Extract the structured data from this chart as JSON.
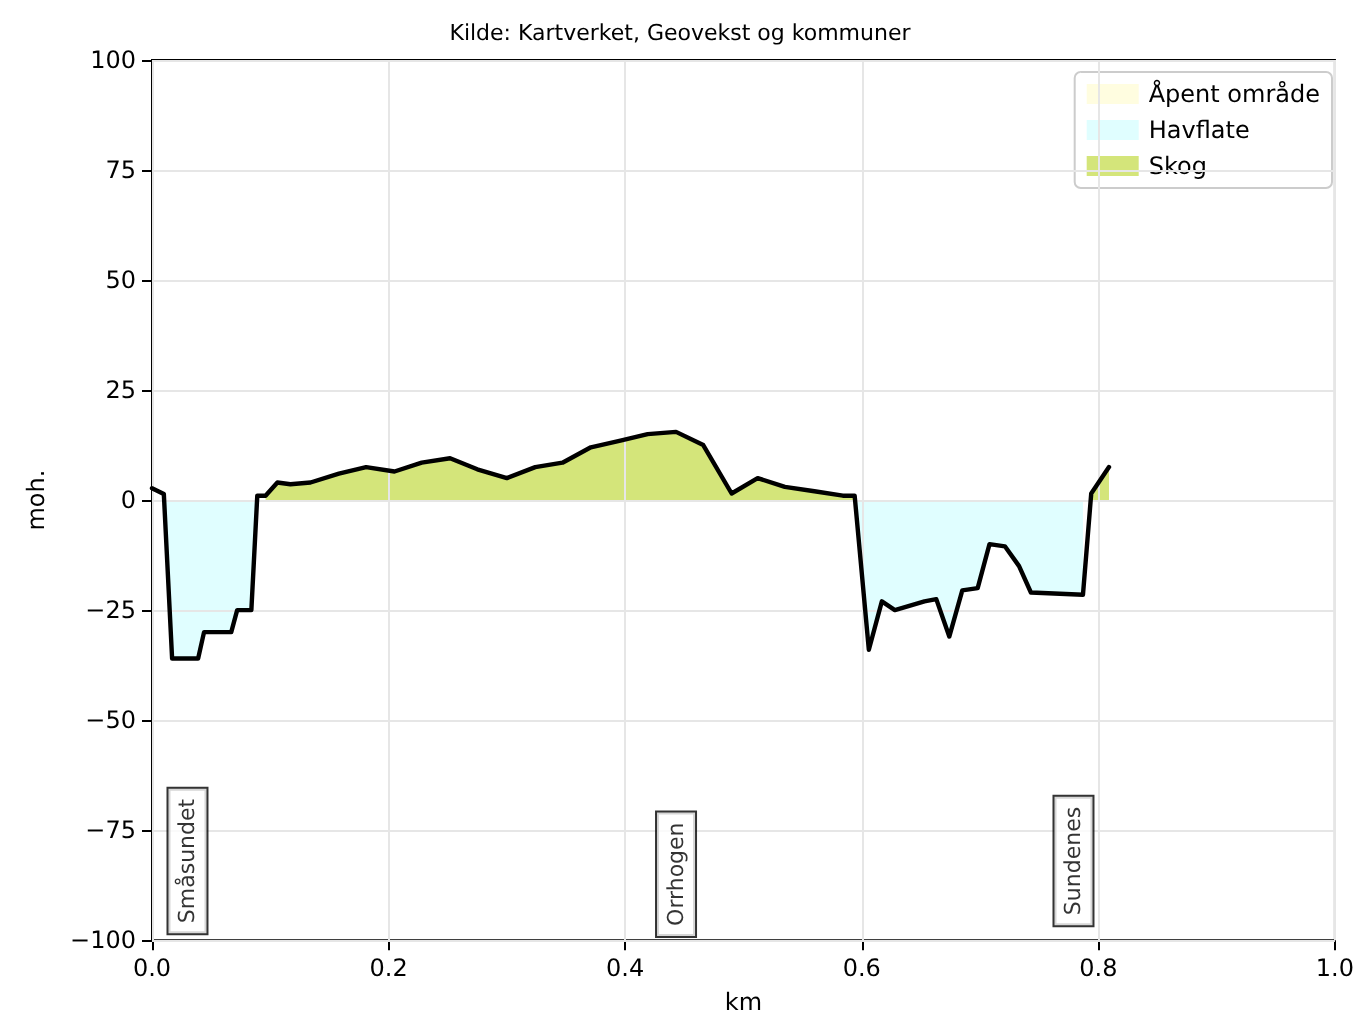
{
  "chart_data": {
    "type": "line",
    "title": "Kilde: Kartverket, Geovekst og kommuner",
    "xlabel": "km",
    "ylabel": "moh.",
    "x": [
      0,
      0.01,
      0.017,
      0.039,
      0.044,
      0.067,
      0.072,
      0.084,
      0.089,
      0.096,
      0.106,
      0.117,
      0.134,
      0.158,
      0.181,
      0.205,
      0.228,
      0.252,
      0.275,
      0.3,
      0.324,
      0.347,
      0.371,
      0.396,
      0.419,
      0.443,
      0.466,
      0.49,
      0.512,
      0.535,
      0.56,
      0.584,
      0.594,
      0.606,
      0.617,
      0.628,
      0.653,
      0.663,
      0.674,
      0.685,
      0.698,
      0.708,
      0.721,
      0.733,
      0.743,
      0.787,
      0.794,
      0.809
    ],
    "series": [
      {
        "type": "area",
        "name": "Åpent område",
        "color": "#fffde0",
        "values": [
          null,
          null,
          null,
          null,
          null,
          null,
          null,
          null,
          null,
          null,
          null,
          null,
          null,
          null,
          null,
          null,
          null,
          null,
          null,
          null,
          null,
          null,
          null,
          null,
          null,
          null,
          null,
          null,
          null,
          null,
          null,
          null,
          null,
          null,
          null,
          null,
          null,
          null,
          null,
          null,
          null,
          null,
          null,
          null,
          null,
          null,
          null,
          null
        ]
      },
      {
        "type": "area",
        "name": "Havflate",
        "color": "#e0feff",
        "values": [
          null,
          1.4,
          -36,
          -36,
          -30,
          -30,
          -25,
          -25,
          1,
          null,
          null,
          null,
          null,
          null,
          null,
          null,
          null,
          null,
          null,
          null,
          null,
          null,
          null,
          null,
          null,
          null,
          null,
          null,
          null,
          null,
          null,
          null,
          1,
          -34,
          -23,
          -25,
          -23,
          -22.5,
          -31,
          -20.5,
          -20,
          -10,
          -10.5,
          -15,
          -21,
          -21.5,
          null,
          null
        ]
      },
      {
        "type": "area",
        "name": "Skog",
        "color": "#d4e57a",
        "values": [
          null,
          null,
          null,
          null,
          null,
          null,
          null,
          null,
          null,
          1,
          4,
          3.6,
          4,
          6,
          7.5,
          6.5,
          8.5,
          9.5,
          7,
          5,
          7.5,
          8.5,
          12,
          13.5,
          15,
          15.5,
          12.5,
          1.5,
          5,
          3,
          2,
          1,
          1,
          null,
          null,
          null,
          null,
          null,
          null,
          null,
          null,
          null,
          null,
          null,
          null,
          null,
          1.5,
          7.5
        ]
      },
      {
        "color": "#000000",
        "values": [
          2.7,
          1.4,
          -36,
          -36,
          -30,
          -30,
          -25,
          -25,
          1,
          1,
          4,
          3.6,
          4,
          6,
          7.5,
          6.5,
          8.5,
          9.5,
          7,
          5,
          7.5,
          8.5,
          12,
          13.5,
          15,
          15.5,
          12.5,
          1.5,
          5,
          3,
          2,
          1,
          1,
          -34,
          -23,
          -25,
          -23,
          -22.5,
          -31,
          -20.5,
          -20,
          -10,
          -10.5,
          -15,
          -21,
          -21.5,
          1.5,
          7.5
        ]
      }
    ],
    "annotations": [
      "Småsundet",
      "Orrhogen",
      "Sundenes"
    ],
    "xlim": [
      0,
      1
    ],
    "xticks": [
      {
        "value": 0,
        "label": "0.0"
      },
      {
        "value": 0.2,
        "label": "0.2"
      },
      {
        "value": 0.4,
        "label": "0.4"
      },
      {
        "value": 0.6,
        "label": "0.6"
      },
      {
        "value": 0.8,
        "label": "0.8"
      },
      {
        "value": 1,
        "label": "1.0"
      }
    ],
    "ylim": [
      -100,
      100
    ],
    "yticks": [
      {
        "value": -100,
        "label": "−100"
      },
      {
        "value": -75,
        "label": "−75"
      },
      {
        "value": -50,
        "label": "−50"
      },
      {
        "value": -25,
        "label": "−25"
      },
      0,
      25,
      50,
      75,
      100
    ],
    "grid": true,
    "legend": "top right",
    "line_style": "solid",
    "marker": "none"
  }
}
